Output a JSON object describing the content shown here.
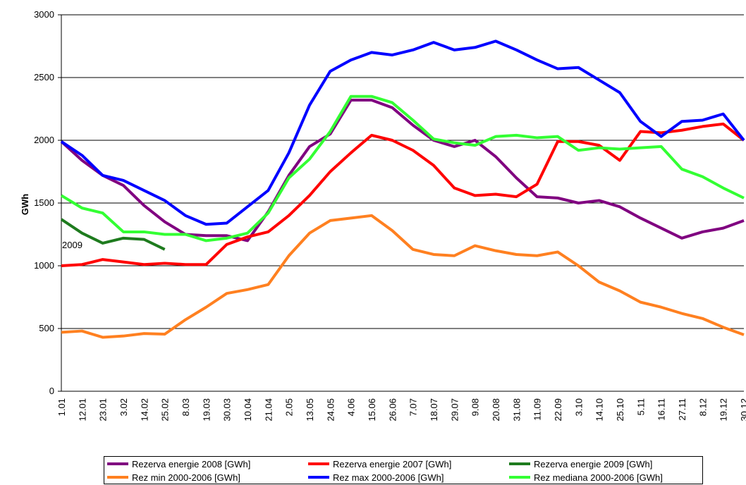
{
  "chart_data": {
    "type": "line",
    "y_label": "GWh",
    "annotation": "2009",
    "categories": [
      "1.01",
      "12.01",
      "23.01",
      "3.02",
      "14.02",
      "25.02",
      "8.03",
      "19.03",
      "30.03",
      "10.04",
      "21.04",
      "2.05",
      "13.05",
      "24.05",
      "4.06",
      "15.06",
      "26.06",
      "7.07",
      "18.07",
      "29.07",
      "9.08",
      "20.08",
      "31.08",
      "11.09",
      "22.09",
      "3.10",
      "14.10",
      "25.10",
      "5.11",
      "16.11",
      "27.11",
      "8.12",
      "19.12",
      "30.12"
    ],
    "ylim": [
      0,
      3000
    ],
    "yticks": [
      0,
      500,
      1000,
      1500,
      2000,
      2500,
      3000
    ],
    "grid": true,
    "legend": "bottom",
    "series": [
      {
        "name": "Rezerva energie 2008 [GWh]",
        "color": "#800080",
        "values": [
          1990,
          1840,
          1720,
          1640,
          1480,
          1350,
          1250,
          1240,
          1240,
          1200,
          1430,
          1720,
          1950,
          2050,
          2320,
          2320,
          2260,
          2120,
          2000,
          1950,
          2000,
          1870,
          1700,
          1550,
          1540,
          1500,
          1520,
          1470,
          1380,
          1300,
          1220,
          1270,
          1300,
          1360
        ]
      },
      {
        "name": "Rezerva energie 2007 [GWh]",
        "color": "#ff0000",
        "values": [
          1000,
          1010,
          1050,
          1030,
          1010,
          1020,
          1010,
          1010,
          1170,
          1230,
          1270,
          1400,
          1560,
          1750,
          1900,
          2040,
          2000,
          1920,
          1800,
          1620,
          1560,
          1570,
          1550,
          1650,
          1990,
          1990,
          1960,
          1840,
          2070,
          2060,
          2080,
          2110,
          2130,
          2000
        ]
      },
      {
        "name": "Rezerva energie 2009 [GWh]",
        "color": "#1e7b1e",
        "values": [
          1370,
          1260,
          1180,
          1220,
          1210,
          1130,
          null,
          null,
          null,
          null,
          null,
          null,
          null,
          null,
          null,
          null,
          null,
          null,
          null,
          null,
          null,
          null,
          null,
          null,
          null,
          null,
          null,
          null,
          null,
          null,
          null,
          null,
          null,
          null
        ]
      },
      {
        "name": "Rez min 2000-2006 [GWh]",
        "color": "#ff8020",
        "values": [
          470,
          480,
          430,
          440,
          460,
          455,
          570,
          670,
          780,
          810,
          850,
          1080,
          1260,
          1360,
          1380,
          1400,
          1280,
          1130,
          1090,
          1080,
          1160,
          1120,
          1090,
          1080,
          1110,
          1000,
          870,
          800,
          710,
          670,
          620,
          580,
          510,
          450
        ]
      },
      {
        "name": "Rez max 2000-2006 [GWh]",
        "color": "#0000ff",
        "values": [
          1990,
          1880,
          1720,
          1680,
          1600,
          1520,
          1400,
          1330,
          1340,
          1470,
          1600,
          1900,
          2280,
          2550,
          2640,
          2700,
          2680,
          2720,
          2780,
          2720,
          2740,
          2790,
          2720,
          2640,
          2570,
          2580,
          2480,
          2380,
          2150,
          2030,
          2150,
          2160,
          2210,
          2000
        ]
      },
      {
        "name": "Rez mediana 2000-2006 [GWh]",
        "color": "#33ff33",
        "values": [
          1560,
          1460,
          1420,
          1270,
          1270,
          1250,
          1250,
          1200,
          1220,
          1260,
          1420,
          1700,
          1850,
          2070,
          2350,
          2350,
          2300,
          2160,
          2010,
          1980,
          1960,
          2030,
          2040,
          2020,
          2030,
          1920,
          1940,
          1930,
          1940,
          1950,
          1770,
          1710,
          1620,
          1540
        ]
      }
    ]
  }
}
